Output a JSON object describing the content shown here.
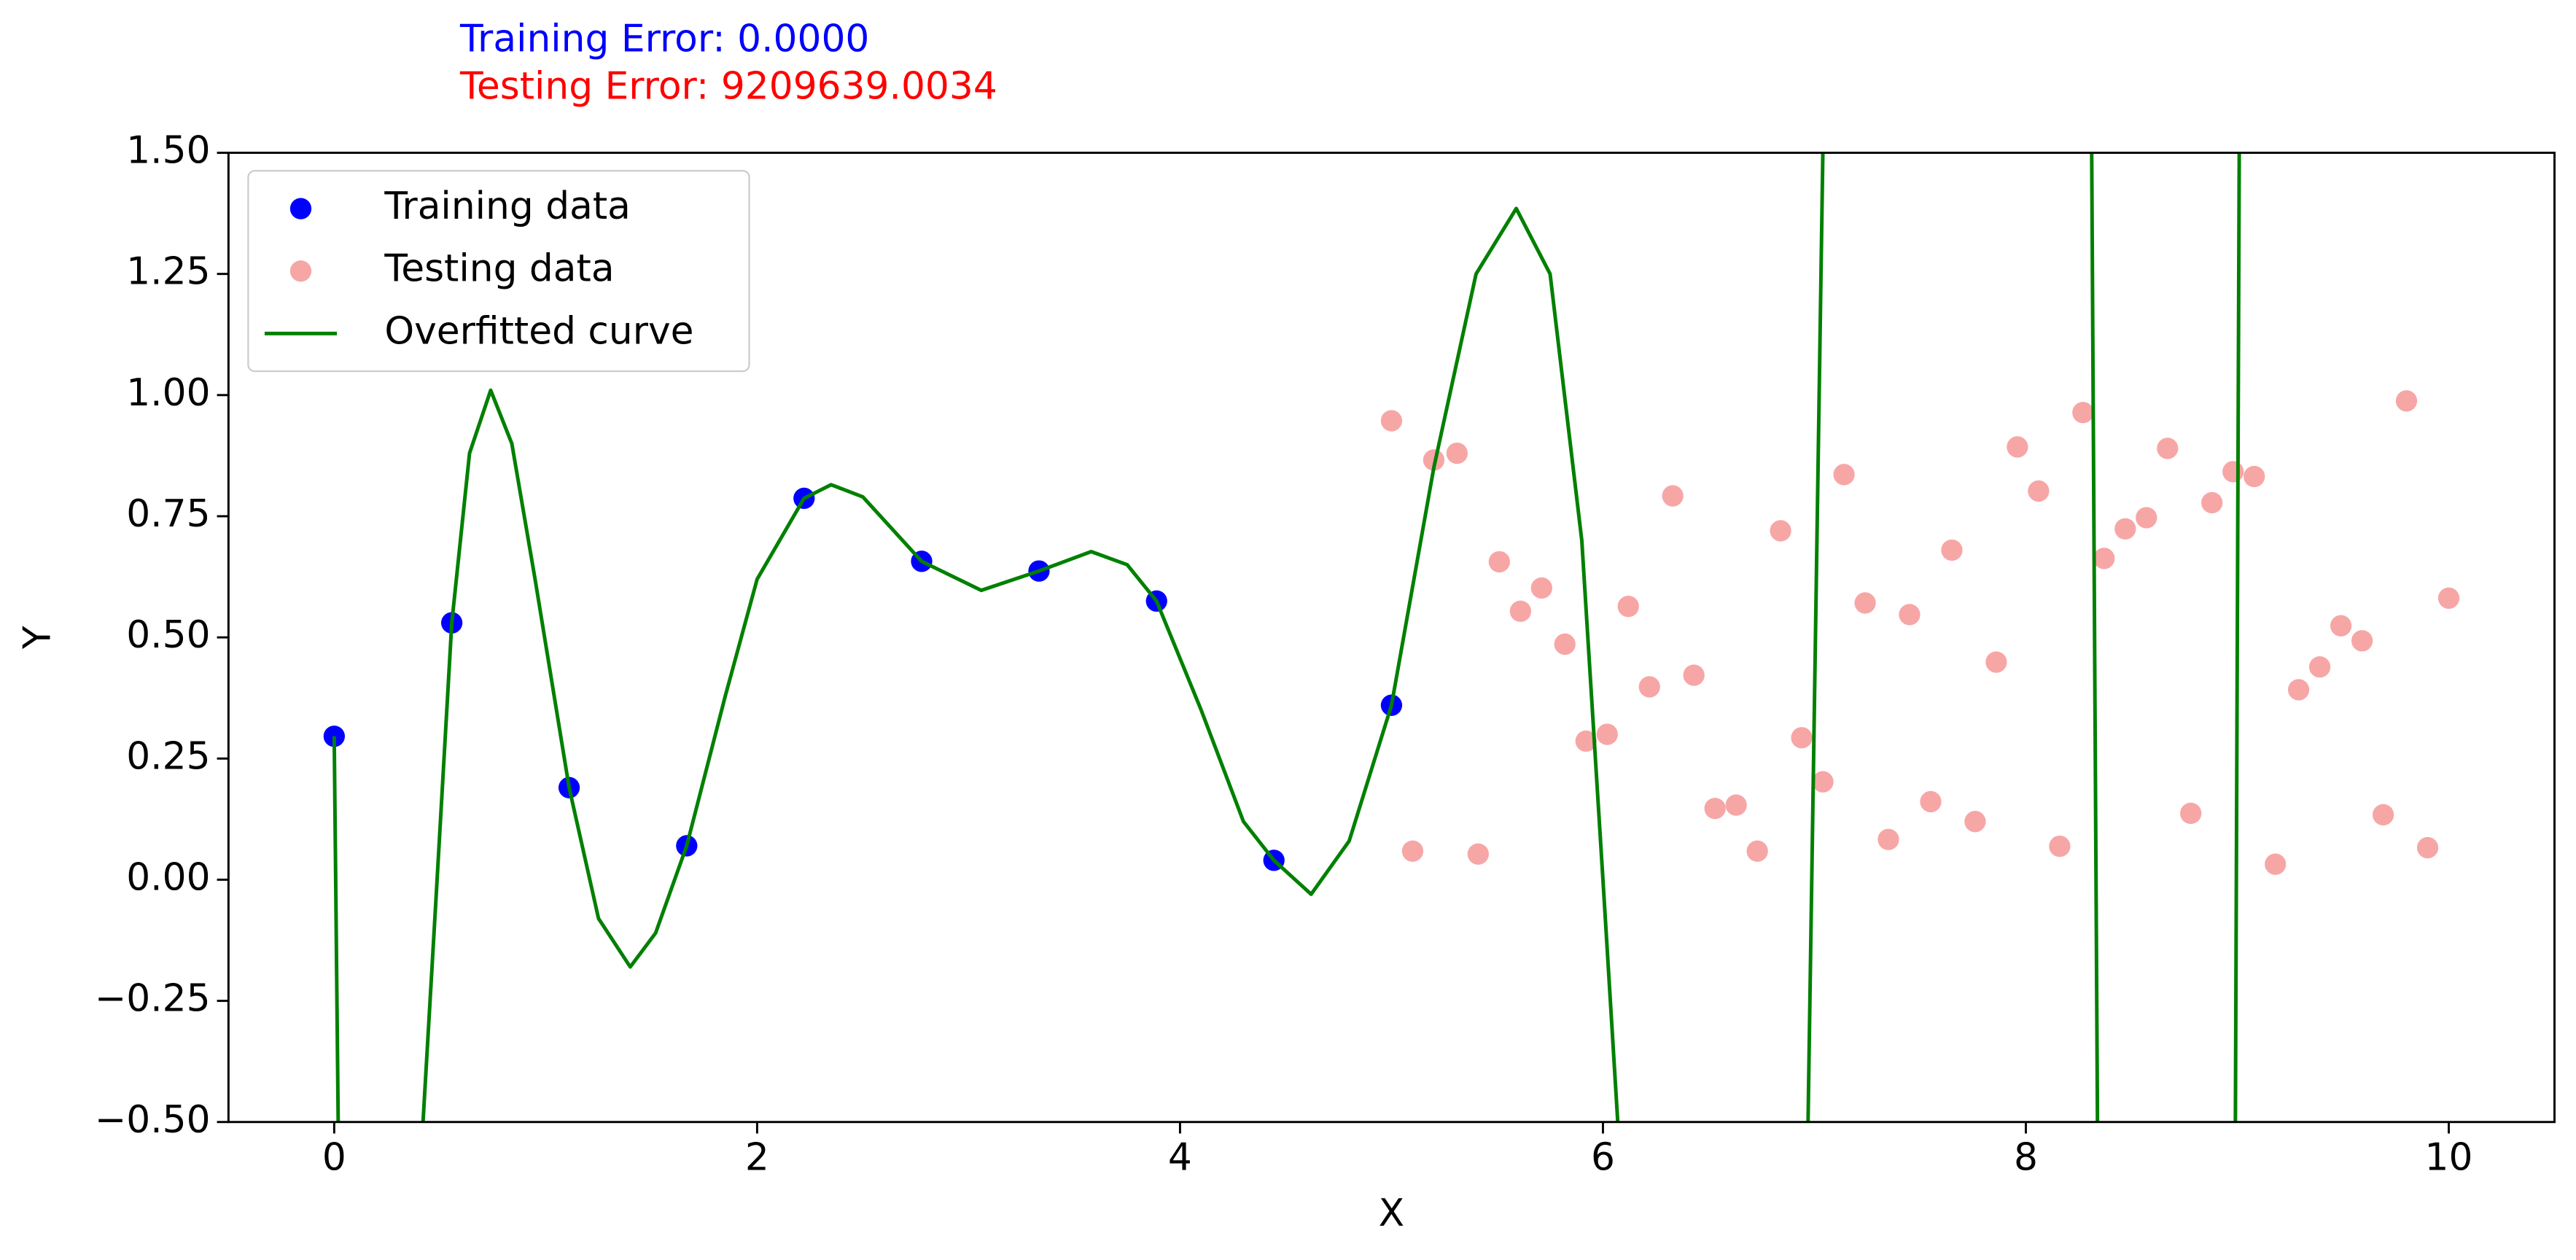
{
  "chart_data": {
    "type": "scatter",
    "annotations": [
      {
        "text": "Training Error: 0.0000",
        "color": "#0000ff"
      },
      {
        "text": "Testing Error: 9209639.0034",
        "color": "#ff0000"
      }
    ],
    "xlabel": "X",
    "ylabel": "Y",
    "xlim": [
      -0.5,
      10.5
    ],
    "ylim": [
      -0.5,
      1.5
    ],
    "xticks": [
      0,
      2,
      4,
      6,
      8,
      10
    ],
    "yticks": [
      {
        "value": -0.5,
        "label": "−0.50"
      },
      {
        "value": -0.25,
        "label": "−0.25"
      },
      {
        "value": 0,
        "label": "0.00"
      },
      {
        "value": 0.25,
        "label": "0.25"
      },
      {
        "value": 0.5,
        "label": "0.50"
      },
      {
        "value": 0.75,
        "label": "0.75"
      },
      {
        "value": 1,
        "label": "1.00"
      },
      {
        "value": 1.25,
        "label": "1.25"
      },
      {
        "value": 1.5,
        "label": "1.50"
      }
    ],
    "grid": false,
    "legend": "upper left",
    "series": [
      {
        "name": "Training data",
        "type": "scatter",
        "color": "#0000ff",
        "x": [
          0,
          0.556,
          1.111,
          1.667,
          2.222,
          2.778,
          3.333,
          3.889,
          4.444,
          5.0
        ],
        "values": [
          0.296,
          0.53,
          0.19,
          0.07,
          0.787,
          0.657,
          0.637,
          0.575,
          0.04,
          0.36
        ]
      },
      {
        "name": "Testing data",
        "type": "scatter",
        "color": "#f7a6a6",
        "x": [
          5.0,
          5.1,
          5.2,
          5.31,
          5.41,
          5.51,
          5.61,
          5.71,
          5.82,
          5.92,
          6.02,
          6.12,
          6.22,
          6.33,
          6.43,
          6.53,
          6.63,
          6.73,
          6.84,
          6.94,
          7.04,
          7.14,
          7.24,
          7.35,
          7.45,
          7.55,
          7.65,
          7.76,
          7.86,
          7.96,
          8.06,
          8.16,
          8.27,
          8.37,
          8.47,
          8.57,
          8.67,
          8.78,
          8.88,
          8.98,
          9.08,
          9.18,
          9.29,
          9.39,
          9.49,
          9.59,
          9.69,
          9.8,
          9.9,
          10.0
        ],
        "values": [
          0.947,
          0.059,
          0.866,
          0.88,
          0.053,
          0.656,
          0.554,
          0.602,
          0.486,
          0.286,
          0.3,
          0.564,
          0.398,
          0.792,
          0.422,
          0.147,
          0.154,
          0.059,
          0.72,
          0.293,
          0.202,
          0.836,
          0.571,
          0.083,
          0.547,
          0.161,
          0.68,
          0.12,
          0.449,
          0.893,
          0.802,
          0.069,
          0.964,
          0.663,
          0.724,
          0.747,
          0.89,
          0.137,
          0.778,
          0.842,
          0.832,
          0.032,
          0.392,
          0.439,
          0.524,
          0.493,
          0.134,
          0.988,
          0.066,
          0.581
        ]
      },
      {
        "name": "Overfitted curve",
        "type": "line",
        "color": "#008000",
        "x": [
          0,
          0.02,
          0.2,
          0.42,
          0.48,
          0.556,
          0.64,
          0.74,
          0.84,
          0.95,
          1.111,
          1.25,
          1.4,
          1.52,
          1.667,
          1.85,
          2.0,
          2.222,
          2.35,
          2.5,
          2.778,
          3.06,
          3.333,
          3.58,
          3.75,
          3.889,
          4.1,
          4.3,
          4.444,
          4.62,
          4.8,
          5.0,
          5.2,
          5.4,
          5.59,
          5.75,
          5.9,
          6.0,
          6.07,
          6.1,
          6.5,
          6.95,
          6.97,
          7.04,
          7.06,
          7.7,
          8.31,
          8.34,
          8.6,
          8.99,
          9.01
        ],
        "values": [
          0.296,
          -0.55,
          null,
          -0.5,
          -0.05,
          0.53,
          0.88,
          1.01,
          0.9,
          0.62,
          0.19,
          -0.08,
          -0.18,
          -0.11,
          0.07,
          0.38,
          0.62,
          0.787,
          0.815,
          0.79,
          0.657,
          0.597,
          0.637,
          0.677,
          0.65,
          0.575,
          0.35,
          0.12,
          0.04,
          -0.03,
          0.08,
          0.36,
          0.85,
          1.25,
          1.385,
          1.25,
          0.7,
          0.0,
          -0.5,
          -0.7,
          null,
          -0.6,
          -0.5,
          1.5,
          1.7,
          null,
          1.6,
          -0.6,
          null,
          -0.6,
          1.6
        ]
      }
    ]
  }
}
